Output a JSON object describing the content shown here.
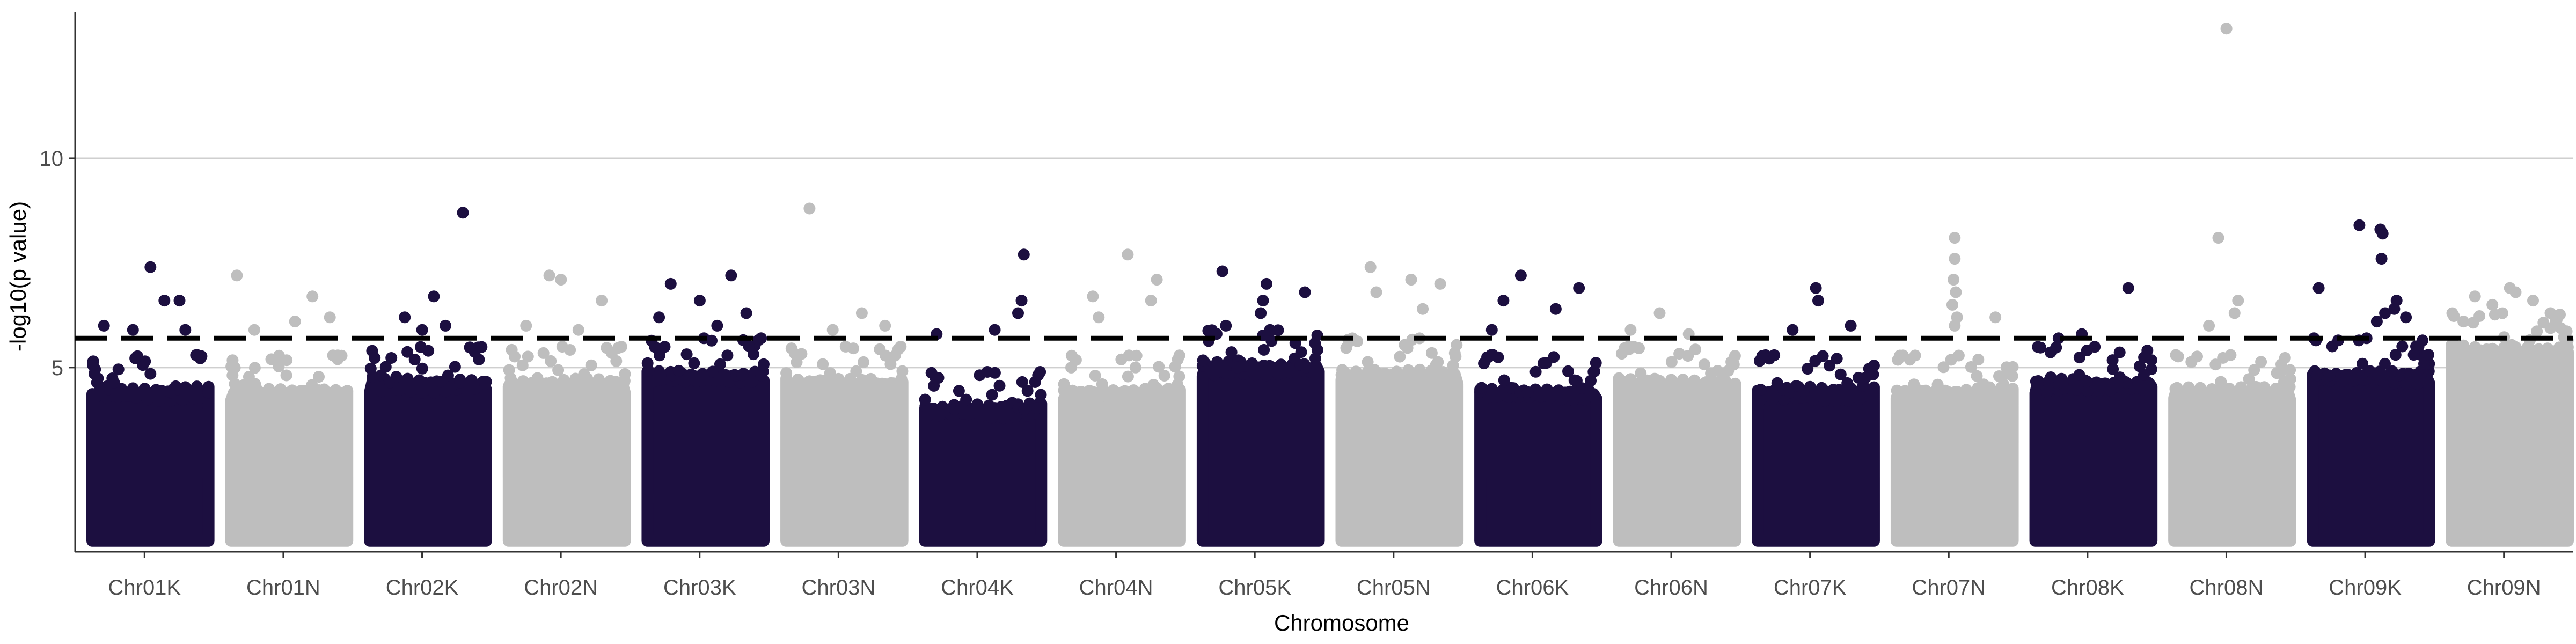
{
  "chart_data": {
    "type": "scatter",
    "subtype": "manhattan",
    "title": "",
    "xlabel": "Chromosome",
    "ylabel": "-log10(p value)",
    "ylim": [
      0.6,
      13.5
    ],
    "yticks": [
      5,
      10
    ],
    "threshold": 5.7,
    "threshold_style": "dashed",
    "grid": "horizontal major",
    "colors": {
      "odd": "#1c0f40",
      "even": "#bebebe",
      "threshold": "#000000"
    },
    "base_floor": 1.0,
    "categories": [
      "Chr01K",
      "Chr01N",
      "Chr02K",
      "Chr02N",
      "Chr03K",
      "Chr03N",
      "Chr04K",
      "Chr04N",
      "Chr05K",
      "Chr05N",
      "Chr06K",
      "Chr06N",
      "Chr07K",
      "Chr07N",
      "Chr08K",
      "Chr08N",
      "Chr09K",
      "Chr09N"
    ],
    "series": [
      {
        "category": "Chr01K",
        "color": "#1c0f40",
        "dense_max": 4.6,
        "points": [
          [
            0.1,
            6.0
          ],
          [
            0.5,
            7.4
          ],
          [
            0.62,
            6.6
          ],
          [
            0.75,
            6.6
          ],
          [
            0.35,
            5.9
          ],
          [
            0.8,
            5.9
          ]
        ]
      },
      {
        "category": "Chr01N",
        "color": "#bebebe",
        "dense_max": 4.6,
        "points": [
          [
            0.05,
            7.2
          ],
          [
            0.7,
            6.7
          ],
          [
            0.55,
            6.1
          ],
          [
            0.85,
            6.2
          ],
          [
            0.2,
            5.9
          ]
        ]
      },
      {
        "category": "Chr02K",
        "color": "#1c0f40",
        "dense_max": 4.8,
        "points": [
          [
            0.8,
            8.7
          ],
          [
            0.3,
            6.2
          ],
          [
            0.55,
            6.7
          ],
          [
            0.45,
            5.9
          ],
          [
            0.65,
            6.0
          ]
        ]
      },
      {
        "category": "Chr02N",
        "color": "#bebebe",
        "dense_max": 4.8,
        "points": [
          [
            0.35,
            7.2
          ],
          [
            0.45,
            7.1
          ],
          [
            0.8,
            6.6
          ],
          [
            0.15,
            6.0
          ],
          [
            0.6,
            5.9
          ]
        ]
      },
      {
        "category": "Chr03K",
        "color": "#1c0f40",
        "dense_max": 5.0,
        "points": [
          [
            0.2,
            7.0
          ],
          [
            0.72,
            7.2
          ],
          [
            0.45,
            6.6
          ],
          [
            0.85,
            6.3
          ],
          [
            0.1,
            6.2
          ],
          [
            0.6,
            6.0
          ]
        ]
      },
      {
        "category": "Chr03N",
        "color": "#bebebe",
        "dense_max": 4.8,
        "points": [
          [
            0.2,
            8.8
          ],
          [
            0.65,
            6.3
          ],
          [
            0.4,
            5.9
          ],
          [
            0.85,
            6.0
          ]
        ]
      },
      {
        "category": "Chr04K",
        "color": "#1c0f40",
        "dense_max": 4.2,
        "points": [
          [
            0.85,
            7.7
          ],
          [
            0.83,
            6.6
          ],
          [
            0.8,
            6.3
          ],
          [
            0.1,
            5.8
          ],
          [
            0.6,
            5.9
          ]
        ]
      },
      {
        "category": "Chr04N",
        "color": "#bebebe",
        "dense_max": 4.6,
        "points": [
          [
            0.55,
            7.7
          ],
          [
            0.8,
            7.1
          ],
          [
            0.25,
            6.7
          ],
          [
            0.75,
            6.6
          ],
          [
            0.3,
            6.2
          ]
        ]
      },
      {
        "category": "Chr05K",
        "color": "#1c0f40",
        "dense_max": 5.2,
        "points": [
          [
            0.17,
            7.3
          ],
          [
            0.55,
            7.0
          ],
          [
            0.88,
            6.8
          ],
          [
            0.52,
            6.6
          ],
          [
            0.5,
            6.3
          ],
          [
            0.2,
            6.0
          ],
          [
            0.58,
            5.9
          ]
        ]
      },
      {
        "category": "Chr05N",
        "color": "#bebebe",
        "dense_max": 5.0,
        "points": [
          [
            0.25,
            7.4
          ],
          [
            0.6,
            7.1
          ],
          [
            0.85,
            7.0
          ],
          [
            0.3,
            6.8
          ],
          [
            0.7,
            6.4
          ]
        ]
      },
      {
        "category": "Chr06K",
        "color": "#1c0f40",
        "dense_max": 4.6,
        "points": [
          [
            0.35,
            7.2
          ],
          [
            0.2,
            6.6
          ],
          [
            0.65,
            6.4
          ],
          [
            0.85,
            6.9
          ],
          [
            0.1,
            5.9
          ]
        ]
      },
      {
        "category": "Chr06N",
        "color": "#bebebe",
        "dense_max": 4.8,
        "points": [
          [
            0.35,
            6.3
          ],
          [
            0.1,
            5.9
          ],
          [
            0.6,
            5.8
          ]
        ]
      },
      {
        "category": "Chr07K",
        "color": "#1c0f40",
        "dense_max": 4.6,
        "points": [
          [
            0.5,
            6.9
          ],
          [
            0.52,
            6.6
          ],
          [
            0.3,
            5.9
          ],
          [
            0.8,
            6.0
          ]
        ]
      },
      {
        "category": "Chr07N",
        "color": "#bebebe",
        "dense_max": 4.6,
        "points": [
          [
            0.5,
            8.1
          ],
          [
            0.5,
            7.6
          ],
          [
            0.49,
            7.1
          ],
          [
            0.51,
            6.8
          ],
          [
            0.48,
            6.5
          ],
          [
            0.52,
            6.2
          ],
          [
            0.5,
            6.0
          ],
          [
            0.85,
            6.2
          ]
        ]
      },
      {
        "category": "Chr08K",
        "color": "#1c0f40",
        "dense_max": 4.8,
        "points": [
          [
            0.8,
            6.9
          ],
          [
            0.4,
            5.8
          ],
          [
            0.2,
            5.7
          ]
        ]
      },
      {
        "category": "Chr08N",
        "color": "#bebebe",
        "dense_max": 4.6,
        "points": [
          [
            0.45,
            13.1
          ],
          [
            0.38,
            8.1
          ],
          [
            0.55,
            6.6
          ],
          [
            0.52,
            6.3
          ],
          [
            0.3,
            6.0
          ]
        ]
      },
      {
        "category": "Chr09K",
        "color": "#1c0f40",
        "dense_max": 5.0,
        "points": [
          [
            0.4,
            8.4
          ],
          [
            0.58,
            8.3
          ],
          [
            0.6,
            8.2
          ],
          [
            0.59,
            7.6
          ],
          [
            0.05,
            6.9
          ],
          [
            0.72,
            6.6
          ],
          [
            0.7,
            6.4
          ],
          [
            0.62,
            6.3
          ],
          [
            0.55,
            6.1
          ],
          [
            0.8,
            6.2
          ]
        ]
      },
      {
        "category": "Chr09N",
        "color": "#bebebe",
        "dense_max": 5.6,
        "points": [
          [
            0.5,
            6.9
          ],
          [
            0.55,
            6.8
          ],
          [
            0.2,
            6.7
          ],
          [
            0.7,
            6.6
          ],
          [
            0.35,
            6.5
          ],
          [
            0.85,
            6.3
          ],
          [
            0.1,
            6.1
          ]
        ]
      }
    ]
  }
}
